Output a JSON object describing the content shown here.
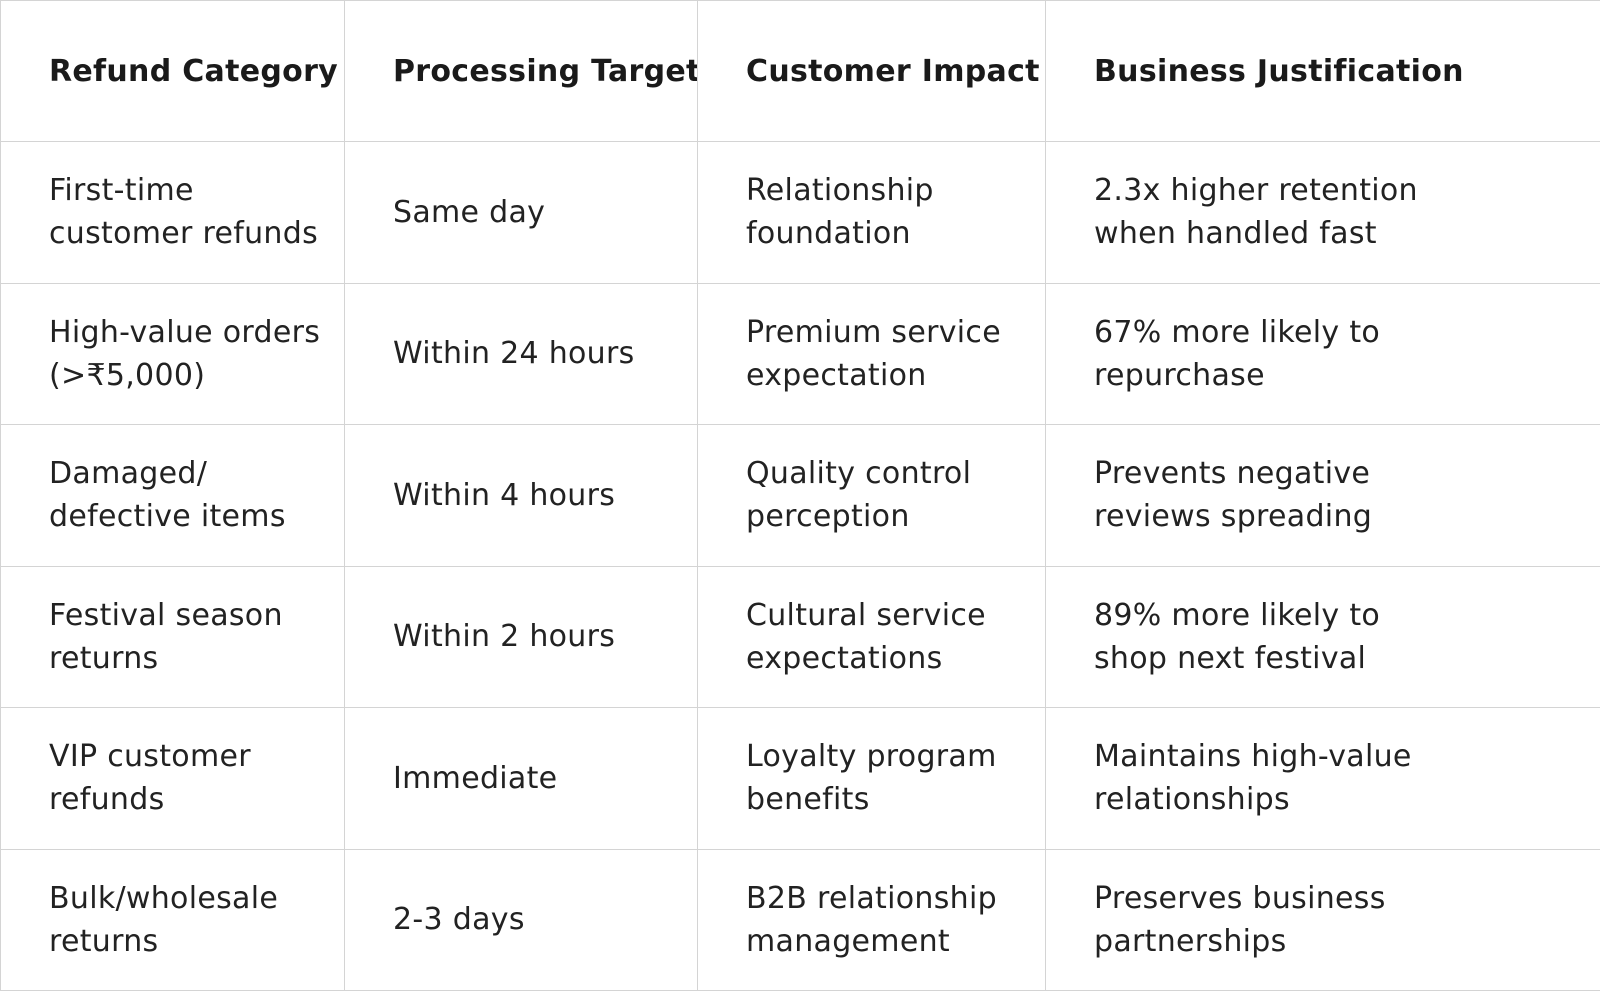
{
  "table": {
    "headers": [
      "Refund Category",
      "Processing Target",
      "Customer Impact",
      "Business Justification"
    ],
    "rows": [
      [
        "First-time customer refunds",
        "Same day",
        "Relationship foundation",
        "2.3x higher retention when handled fast"
      ],
      [
        "High-value orders (>₹5,000)",
        "Within 24 hours",
        "Premium service expectation",
        "67% more likely to repurchase"
      ],
      [
        "Damaged/ defective items",
        "Within 4 hours",
        "Quality control perception",
        "Prevents negative reviews spreading"
      ],
      [
        "Festival season returns",
        "Within 2 hours",
        "Cultural service expectations",
        "89% more likely to shop next festival"
      ],
      [
        "VIP customer refunds",
        "Immediate",
        "Loyalty program benefits",
        "Maintains high-value relationships"
      ],
      [
        "Bulk/wholesale returns",
        "2-3 days",
        "B2B relationship management",
        "Preserves business partnerships"
      ]
    ]
  }
}
